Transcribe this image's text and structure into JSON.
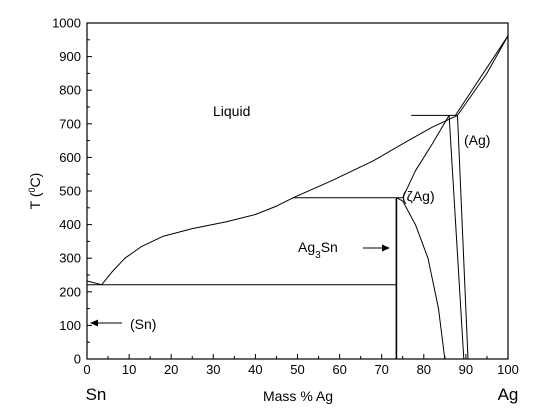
{
  "chart_data": {
    "type": "line",
    "xlabel": "Mass % Ag",
    "ylabel_main": "T (",
    "ylabel_sup": "0",
    "ylabel_end": "C)",
    "xlim": [
      0,
      100
    ],
    "ylim": [
      0,
      1000
    ],
    "x_ticks": [
      0,
      10,
      20,
      30,
      40,
      50,
      60,
      70,
      80,
      90,
      100
    ],
    "y_ticks": [
      0,
      100,
      200,
      300,
      400,
      500,
      600,
      700,
      800,
      900,
      1000
    ],
    "end_labels": {
      "left": "Sn",
      "right": "Ag"
    },
    "regions": {
      "liquid": "Liquid",
      "ag_phase": "(Ag)",
      "zeta": "(ζAg)",
      "ag3sn_base": "Ag",
      "ag3sn_sub": "3",
      "ag3sn_end": "Sn",
      "sn_phase": "(Sn)"
    },
    "series": [
      {
        "values": [
          [
            3.5,
            221
          ],
          [
            6,
            260
          ],
          [
            9,
            300
          ],
          [
            13,
            335
          ],
          [
            18,
            365
          ],
          [
            25,
            388
          ],
          [
            33,
            408
          ],
          [
            40,
            430
          ],
          [
            45,
            455
          ],
          [
            49,
            480
          ],
          [
            58,
            530
          ],
          [
            68,
            590
          ],
          [
            77,
            655
          ],
          [
            82,
            690
          ],
          [
            88,
            725
          ],
          [
            95,
            850
          ],
          [
            100,
            962
          ]
        ]
      },
      {
        "values": [
          [
            0,
            232
          ],
          [
            3.5,
            221
          ]
        ]
      },
      {
        "values": [
          [
            73.5,
            480
          ],
          [
            75,
            470
          ],
          [
            78,
            400
          ],
          [
            81,
            300
          ],
          [
            83.5,
            150
          ],
          [
            85,
            0
          ]
        ]
      },
      {
        "values": [
          [
            75,
            480
          ],
          [
            78,
            560
          ],
          [
            82,
            640
          ],
          [
            86,
            725
          ]
        ]
      },
      {
        "values": [
          [
            87.5,
            725
          ],
          [
            100,
            962
          ]
        ]
      },
      {
        "values": [
          [
            88,
            725
          ],
          [
            90.5,
            0
          ]
        ]
      },
      {
        "values": [
          [
            86,
            725
          ],
          [
            89.5,
            0
          ]
        ]
      },
      {
        "values": [
          [
            73.5,
            0
          ],
          [
            73.5,
            480
          ]
        ]
      }
    ],
    "horizontal_lines": [
      {
        "y": 221,
        "x1": 0,
        "x2": 73.5
      },
      {
        "y": 480,
        "x1": 49,
        "x2": 75
      },
      {
        "y": 725,
        "x1": 77,
        "x2": 88
      }
    ]
  }
}
